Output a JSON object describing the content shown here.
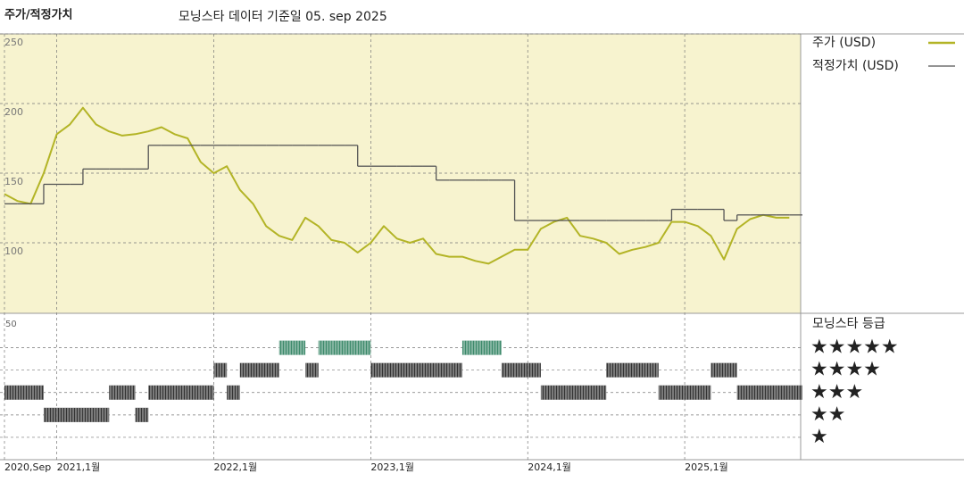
{
  "header": {
    "title": "주가/적정가치",
    "subtitle": "모닝스타 데이터 기준일 05. sep 2025"
  },
  "chart_data": [
    {
      "type": "line",
      "x": [
        "2020-09",
        "2020-10",
        "2020-11",
        "2020-12",
        "2021-01",
        "2021-02",
        "2021-03",
        "2021-04",
        "2021-05",
        "2021-06",
        "2021-07",
        "2021-08",
        "2021-09",
        "2021-10",
        "2021-11",
        "2021-12",
        "2022-01",
        "2022-02",
        "2022-03",
        "2022-04",
        "2022-05",
        "2022-06",
        "2022-07",
        "2022-08",
        "2022-09",
        "2022-10",
        "2022-11",
        "2022-12",
        "2023-01",
        "2023-02",
        "2023-03",
        "2023-04",
        "2023-05",
        "2023-06",
        "2023-07",
        "2023-08",
        "2023-09",
        "2023-10",
        "2023-11",
        "2023-12",
        "2024-01",
        "2024-02",
        "2024-03",
        "2024-04",
        "2024-05",
        "2024-06",
        "2024-07",
        "2024-08",
        "2024-09",
        "2024-10",
        "2024-11",
        "2024-12",
        "2025-01",
        "2025-02",
        "2025-03",
        "2025-04",
        "2025-05",
        "2025-06",
        "2025-07",
        "2025-08",
        "2025-09"
      ],
      "series": [
        {
          "name": "주가 (USD)",
          "color": "#b3b426",
          "values": [
            135,
            130,
            128,
            150,
            178,
            185,
            197,
            185,
            180,
            177,
            178,
            180,
            183,
            178,
            175,
            158,
            150,
            155,
            138,
            128,
            112,
            105,
            102,
            118,
            112,
            102,
            100,
            93,
            100,
            112,
            103,
            100,
            103,
            92,
            90,
            90,
            87,
            85,
            90,
            95,
            95,
            110,
            115,
            118,
            105,
            103,
            100,
            92,
            95,
            97,
            100,
            115,
            115,
            112,
            105,
            88,
            110,
            117,
            120,
            118,
            118
          ]
        },
        {
          "name": "적정가치 (USD)",
          "color": "#555555",
          "step": true,
          "values": [
            128,
            128,
            128,
            142,
            142,
            142,
            153,
            153,
            153,
            153,
            153,
            170,
            170,
            170,
            170,
            170,
            170,
            170,
            170,
            170,
            170,
            170,
            170,
            170,
            170,
            170,
            170,
            155,
            155,
            155,
            155,
            155,
            155,
            145,
            145,
            145,
            145,
            145,
            145,
            116,
            116,
            116,
            116,
            116,
            116,
            116,
            116,
            116,
            116,
            116,
            116,
            124,
            124,
            124,
            124,
            116,
            120,
            120,
            120,
            120,
            120
          ]
        }
      ],
      "xlim": [
        "2020-09",
        "2025-10"
      ],
      "xticks": [
        {
          "value": "2020-09",
          "label": "2020,Sep"
        },
        {
          "value": "2021-01",
          "label": "2021,1월"
        },
        {
          "value": "2022-01",
          "label": "2022,1월"
        },
        {
          "value": "2023-01",
          "label": "2023,1월"
        },
        {
          "value": "2024-01",
          "label": "2024,1월"
        },
        {
          "value": "2025-01",
          "label": "2025,1월"
        }
      ],
      "ylim": [
        50,
        250
      ],
      "yticks": [
        100,
        150,
        200,
        250
      ],
      "grid": true,
      "background": "#f7f3cf"
    },
    {
      "type": "rating",
      "title": "모닝스타 등급",
      "corner_label": "50",
      "values": [
        3,
        3,
        3,
        2,
        2,
        2,
        2,
        2,
        3,
        3,
        2,
        3,
        3,
        3,
        3,
        3,
        4,
        3,
        4,
        4,
        4,
        5,
        5,
        4,
        5,
        5,
        5,
        5,
        4,
        4,
        4,
        4,
        4,
        4,
        4,
        5,
        5,
        5,
        4,
        4,
        4,
        3,
        3,
        3,
        3,
        3,
        4,
        4,
        4,
        4,
        3,
        3,
        3,
        3,
        4,
        4,
        3,
        3,
        3,
        3,
        3
      ],
      "levels": [
        5,
        4,
        3,
        2,
        1
      ],
      "level_labels": [
        "★★★★★",
        "★★★★",
        "★★★",
        "★★",
        "★"
      ],
      "ylim": [
        0,
        6.5
      ],
      "color": "#333333",
      "top_color": "#3d8a6b"
    }
  ]
}
